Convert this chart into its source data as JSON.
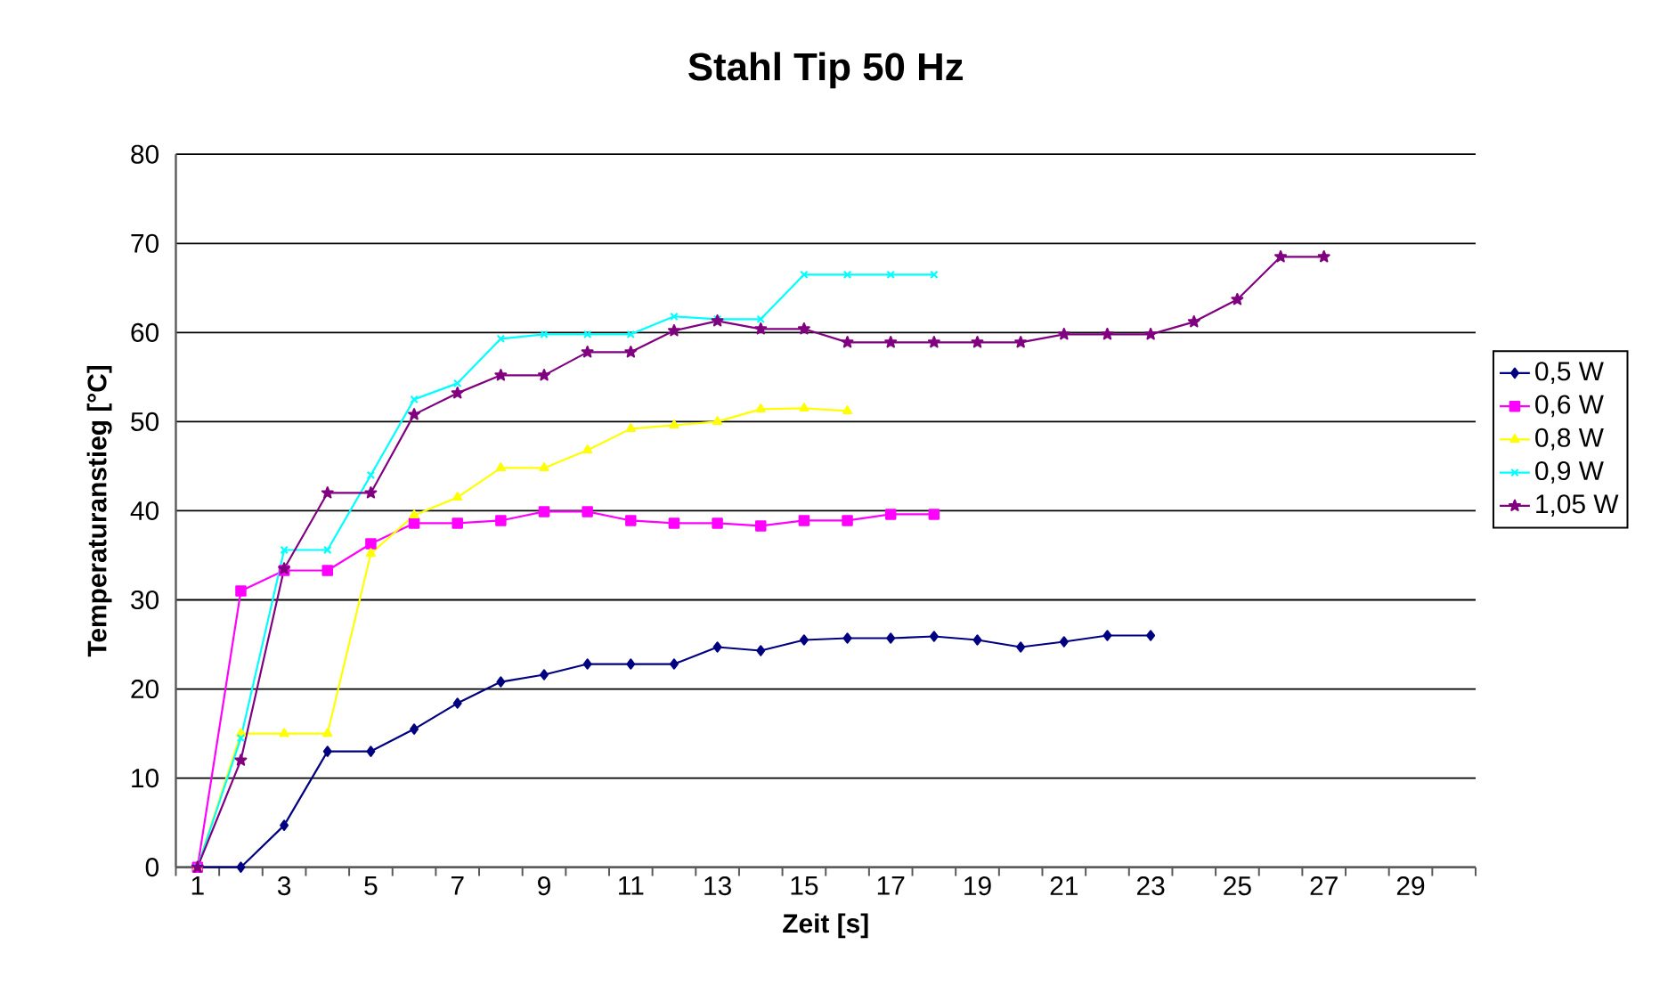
{
  "chart_data": {
    "type": "line",
    "title": "Stahl Tip 50 Hz",
    "xlabel": "Zeit [s]",
    "ylabel": "Temperaturanstieg [°C]",
    "categories": [
      "1",
      null,
      "3",
      null,
      "5",
      null,
      "7",
      null,
      "9",
      null,
      "11",
      null,
      "13",
      null,
      "15",
      null,
      "17",
      null,
      "19",
      null,
      "21",
      null,
      "23",
      null,
      "25",
      null,
      "27",
      null,
      "29",
      null
    ],
    "ylim": [
      0,
      80
    ],
    "yticks": [
      0,
      10,
      20,
      30,
      40,
      50,
      60,
      70,
      80
    ],
    "grid": "y",
    "legend": "right",
    "series": [
      {
        "name": "0,5 W",
        "color": "#000080",
        "marker": "diamond",
        "values": [
          0,
          0,
          4.7,
          13,
          13,
          15.5,
          18.4,
          20.8,
          21.6,
          22.8,
          22.8,
          22.8,
          24.7,
          24.3,
          25.5,
          25.7,
          25.7,
          25.9,
          25.5,
          24.7,
          25.3,
          26,
          26,
          null,
          null,
          null,
          null,
          null,
          null,
          null
        ]
      },
      {
        "name": "0,6 W",
        "color": "#ff00ff",
        "marker": "square",
        "values": [
          0,
          31,
          33.3,
          33.3,
          36.3,
          38.6,
          38.6,
          38.9,
          39.9,
          39.9,
          38.9,
          38.6,
          38.6,
          38.3,
          38.9,
          38.9,
          39.6,
          39.6,
          null,
          null,
          null,
          null,
          null,
          null,
          null,
          null,
          null,
          null,
          null,
          null
        ]
      },
      {
        "name": "0,8 W",
        "color": "#ffff00",
        "marker": "triangle",
        "values": [
          0,
          15,
          15,
          15,
          35.2,
          39.5,
          41.5,
          44.8,
          44.8,
          46.8,
          49.2,
          49.6,
          50,
          51.4,
          51.5,
          51.2,
          null,
          null,
          null,
          null,
          null,
          null,
          null,
          null,
          null,
          null,
          null,
          null,
          null,
          null
        ]
      },
      {
        "name": "0,9 W",
        "color": "#00ffff",
        "marker": "cross",
        "values": [
          0,
          14.5,
          35.6,
          35.6,
          44,
          52.5,
          54.3,
          59.3,
          59.8,
          59.8,
          59.8,
          61.8,
          61.5,
          61.5,
          66.5,
          66.5,
          66.5,
          66.5,
          null,
          null,
          null,
          null,
          null,
          null,
          null,
          null,
          null,
          null,
          null,
          null
        ]
      },
      {
        "name": "1,05 W",
        "color": "#800080",
        "marker": "star",
        "values": [
          0,
          12,
          33.5,
          42,
          42,
          50.8,
          53.2,
          55.2,
          55.2,
          57.8,
          57.8,
          60.2,
          61.3,
          60.4,
          60.4,
          58.9,
          58.9,
          58.9,
          58.9,
          58.9,
          59.8,
          59.8,
          59.8,
          61.2,
          63.7,
          68.5,
          68.5,
          null,
          null,
          null
        ]
      }
    ]
  }
}
